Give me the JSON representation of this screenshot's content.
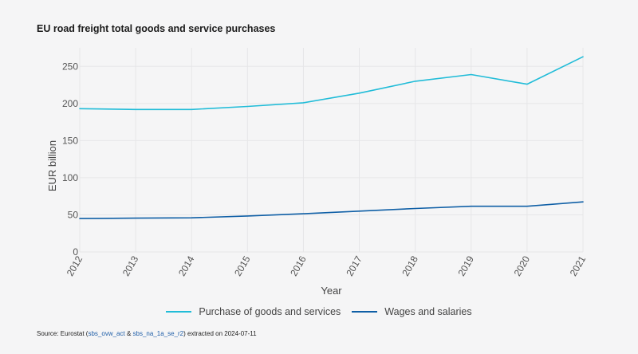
{
  "title": "EU road freight total goods and service purchases",
  "source": {
    "prefix": "Source: Eurostat (",
    "link1": "sbs_ovw_act",
    "sep": " & ",
    "link2": "sbs_na_1a_se_r2",
    "suffix": ") extracted on 2024-07-11"
  },
  "chart_data": {
    "type": "line",
    "title": "EU road freight total goods and service purchases",
    "xlabel": "Year",
    "ylabel": "EUR billion",
    "x": [
      "2012",
      "2013",
      "2014",
      "2015",
      "2016",
      "2017",
      "2018",
      "2019",
      "2020",
      "2021"
    ],
    "ylim": [
      0,
      275
    ],
    "yticks": [
      0,
      50,
      100,
      150,
      200,
      250
    ],
    "grid": true,
    "legend_position": "bottom",
    "series": [
      {
        "name": "Purchase of goods and services",
        "color": "#21bcd8",
        "values": [
          193,
          192,
          192,
          196,
          201,
          214,
          230,
          239,
          226,
          263
        ]
      },
      {
        "name": "Wages and salaries",
        "color": "#0f5fa6",
        "values": [
          45,
          45.5,
          46,
          48.5,
          51.5,
          55,
          58.5,
          61.5,
          61.5,
          67.5
        ]
      }
    ]
  }
}
